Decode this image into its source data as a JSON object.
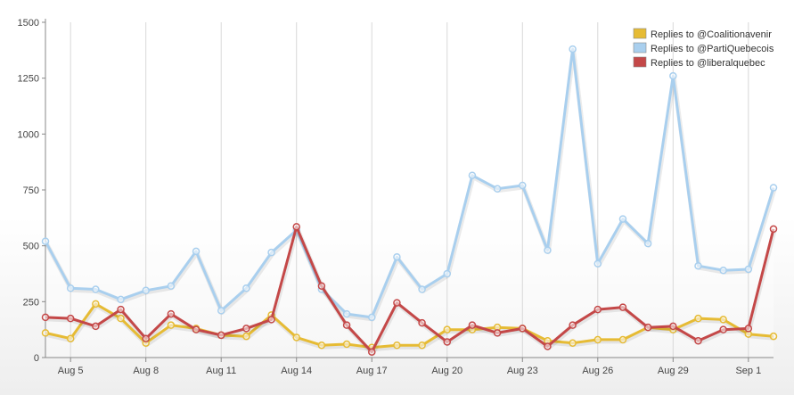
{
  "chart_data": {
    "type": "line",
    "title": "",
    "xlabel": "",
    "ylabel": "",
    "ylim": [
      0,
      1500
    ],
    "y_ticks": [
      0,
      250,
      500,
      750,
      1000,
      1250,
      1500
    ],
    "y_tick_labels": [
      "0",
      "250",
      "500",
      "750",
      "1000",
      "1250",
      "1500"
    ],
    "x_tick_labels": [
      "Aug 5",
      "Aug 8",
      "Aug 11",
      "Aug 14",
      "Aug 17",
      "Aug 20",
      "Aug 23",
      "Aug 26",
      "Aug 29",
      "Sep 1"
    ],
    "x_tick_day_index": [
      1,
      4,
      7,
      10,
      13,
      16,
      19,
      22,
      25,
      28
    ],
    "x": [
      "Aug 4",
      "Aug 5",
      "Aug 6",
      "Aug 7",
      "Aug 8",
      "Aug 9",
      "Aug 10",
      "Aug 11",
      "Aug 12",
      "Aug 13",
      "Aug 14",
      "Aug 15",
      "Aug 16",
      "Aug 17",
      "Aug 18",
      "Aug 19",
      "Aug 20",
      "Aug 21",
      "Aug 22",
      "Aug 23",
      "Aug 24",
      "Aug 25",
      "Aug 26",
      "Aug 27",
      "Aug 28",
      "Aug 29",
      "Aug 30",
      "Aug 31",
      "Sep 1",
      "Sep 2"
    ],
    "grid": "vertical lines at x ticks",
    "legend_position": "top-right",
    "series": [
      {
        "name": "Replies to @PartiQuebecois",
        "color": "#a9cfee",
        "values": [
          520,
          310,
          305,
          260,
          300,
          320,
          475,
          210,
          310,
          470,
          570,
          305,
          195,
          180,
          450,
          305,
          375,
          815,
          755,
          770,
          480,
          1380,
          420,
          620,
          510,
          1260,
          410,
          390,
          395,
          760
        ]
      },
      {
        "name": "Replies to @Coalitionavenir",
        "color": "#e6bb34",
        "values": [
          110,
          85,
          240,
          175,
          65,
          145,
          130,
          100,
          95,
          190,
          90,
          55,
          60,
          45,
          55,
          55,
          125,
          125,
          135,
          130,
          75,
          65,
          80,
          80,
          135,
          125,
          175,
          170,
          105,
          95
        ]
      },
      {
        "name": "Replies to @liberalquebec",
        "color": "#c44848",
        "values": [
          180,
          175,
          140,
          215,
          85,
          195,
          125,
          100,
          130,
          170,
          585,
          320,
          145,
          25,
          245,
          155,
          70,
          145,
          110,
          130,
          50,
          145,
          215,
          225,
          135,
          140,
          75,
          125,
          130,
          575
        ]
      }
    ]
  },
  "legend": {
    "items": [
      {
        "label": "Replies to @Coalitionavenir",
        "color": "#e6bb34"
      },
      {
        "label": "Replies to @PartiQuebecois",
        "color": "#a9cfee"
      },
      {
        "label": "Replies to @liberalquebec",
        "color": "#c44848"
      }
    ]
  }
}
